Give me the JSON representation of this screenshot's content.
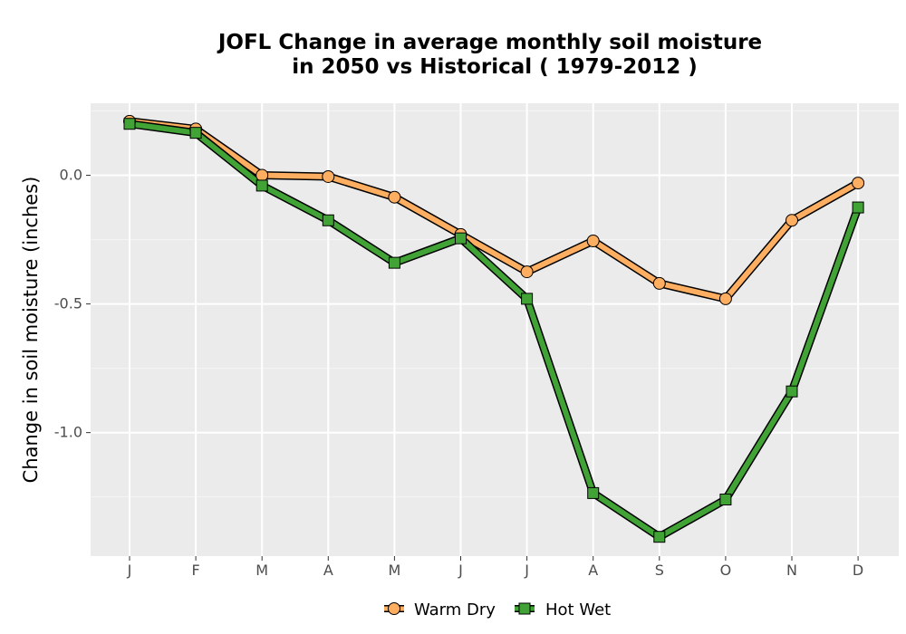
{
  "chart_data": {
    "type": "line",
    "title_line1": "JOFL  Change in average monthly soil moisture",
    "title_line2": "in 2050 vs Historical ( 1979-2012 )",
    "xlabel": "",
    "ylabel": "Change in soil moisture (inches)",
    "categories": [
      "J",
      "F",
      "M",
      "A",
      "M",
      "J",
      "J",
      "A",
      "S",
      "O",
      "N",
      "D"
    ],
    "yticks": [
      0.0,
      -0.5,
      -1.0
    ],
    "ytick_labels": [
      "0.0",
      "-0.5",
      "-1.0"
    ],
    "ylim": [
      -1.48,
      0.28
    ],
    "grid": true,
    "legend_position": "bottom",
    "series": [
      {
        "name": "Warm Dry",
        "marker": "circle",
        "color": "#FDAE61",
        "values": [
          0.21,
          0.18,
          0.0,
          -0.005,
          -0.085,
          -0.23,
          -0.375,
          -0.255,
          -0.42,
          -0.48,
          -0.175,
          -0.03
        ]
      },
      {
        "name": "Hot Wet",
        "marker": "square",
        "color": "#41A336",
        "values": [
          0.2,
          0.165,
          -0.04,
          -0.175,
          -0.34,
          -0.245,
          -0.48,
          -1.235,
          -1.405,
          -1.26,
          -0.84,
          -0.125
        ]
      }
    ]
  }
}
